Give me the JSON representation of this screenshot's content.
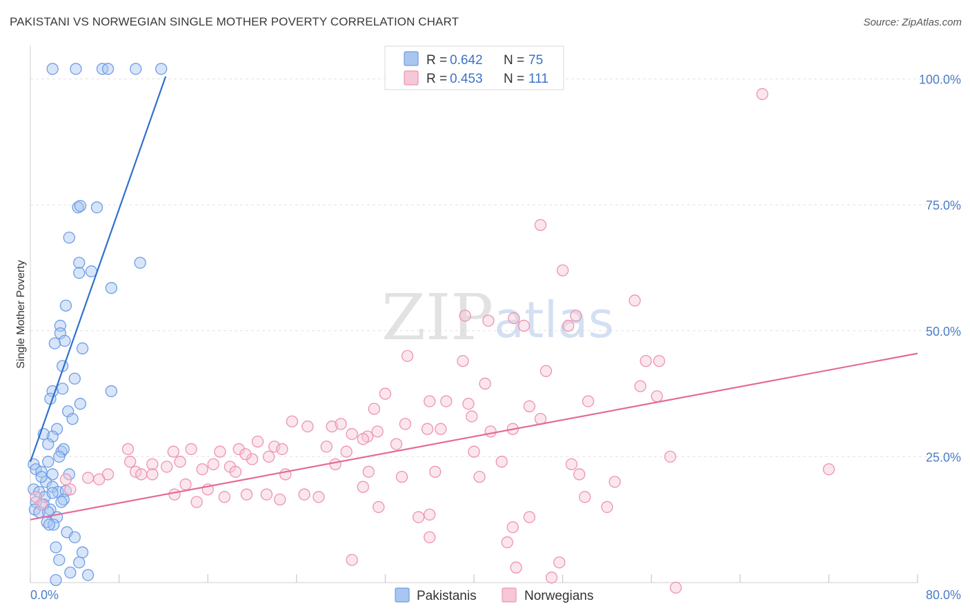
{
  "title": "PAKISTANI VS NORWEGIAN SINGLE MOTHER POVERTY CORRELATION CHART",
  "source": "Source: ZipAtlas.com",
  "watermark": {
    "zip": "ZIP",
    "atlas": "atlas"
  },
  "colors": {
    "blue": "#6d9de6",
    "blue_fill": "#a9c6f1",
    "blue_line": "#2f6fcf",
    "pink": "#ec93b0",
    "pink_fill": "#f6c7d6",
    "pink_line": "#e46b94",
    "grid": "#e2e2e2",
    "tick_text": "#4a7cc9"
  },
  "legend": {
    "rows": [
      {
        "r_label": "R =",
        "r_value": "0.642",
        "n_label": "N =",
        "n_value": "75"
      },
      {
        "r_label": "R =",
        "r_value": "0.453",
        "n_label": "N =",
        "n_value": "111"
      }
    ]
  },
  "chart_data": {
    "type": "scatter",
    "title": "PAKISTANI VS NORWEGIAN SINGLE MOTHER POVERTY CORRELATION CHART",
    "xlabel": "",
    "ylabel": "Single Mother Poverty",
    "xlim": [
      0,
      80
    ],
    "ylim": [
      0,
      105
    ],
    "x_tick_labels": [
      "0.0%",
      "80.0%"
    ],
    "y_ticks": [
      {
        "value": 25,
        "label": "25.0%"
      },
      {
        "value": 50,
        "label": "50.0%"
      },
      {
        "value": 75,
        "label": "75.0%"
      },
      {
        "value": 100,
        "label": "100.0%"
      }
    ],
    "grid": true,
    "legend_position": "top-center",
    "series": [
      {
        "name": "Pakistanis",
        "trend": {
          "x1": 0.0,
          "y1": 24.0,
          "x2": 12.2,
          "y2": 100.5
        },
        "points": [
          [
            2.0,
            102
          ],
          [
            4.1,
            102
          ],
          [
            6.5,
            102
          ],
          [
            7.0,
            102
          ],
          [
            9.5,
            102
          ],
          [
            11.8,
            102
          ],
          [
            4.3,
            74.5
          ],
          [
            4.5,
            74.8
          ],
          [
            6.0,
            74.5
          ],
          [
            3.5,
            68.5
          ],
          [
            4.4,
            63.5
          ],
          [
            4.4,
            61.5
          ],
          [
            5.5,
            61.8
          ],
          [
            7.3,
            58.5
          ],
          [
            9.9,
            63.5
          ],
          [
            3.2,
            55
          ],
          [
            2.7,
            51
          ],
          [
            2.7,
            49.5
          ],
          [
            3.1,
            48
          ],
          [
            2.2,
            47.5
          ],
          [
            4.7,
            46.5
          ],
          [
            2.9,
            43
          ],
          [
            4.0,
            40.5
          ],
          [
            2.9,
            38.5
          ],
          [
            2.0,
            38
          ],
          [
            1.8,
            36.5
          ],
          [
            4.5,
            35.5
          ],
          [
            7.3,
            38
          ],
          [
            3.4,
            34
          ],
          [
            3.8,
            32.5
          ],
          [
            2.4,
            30.5
          ],
          [
            2.0,
            29
          ],
          [
            1.2,
            29.5
          ],
          [
            1.6,
            27.5
          ],
          [
            2.8,
            26
          ],
          [
            3.0,
            26.5
          ],
          [
            2.6,
            25
          ],
          [
            1.6,
            24
          ],
          [
            0.3,
            23.5
          ],
          [
            0.5,
            22.5
          ],
          [
            1.0,
            22
          ],
          [
            2.0,
            21.5
          ],
          [
            3.5,
            21.5
          ],
          [
            1.4,
            20
          ],
          [
            2.0,
            19
          ],
          [
            2.5,
            18
          ],
          [
            3.2,
            18.2
          ],
          [
            3.0,
            16.5
          ],
          [
            0.3,
            18.5
          ],
          [
            0.8,
            18
          ],
          [
            1.3,
            17
          ],
          [
            0.5,
            16
          ],
          [
            1.2,
            15.5
          ],
          [
            1.8,
            14.5
          ],
          [
            2.4,
            13
          ],
          [
            0.4,
            14.5
          ],
          [
            0.8,
            14
          ],
          [
            1.5,
            12
          ],
          [
            2.1,
            11.5
          ],
          [
            1.6,
            14
          ],
          [
            2.8,
            16
          ],
          [
            2.0,
            17.8
          ],
          [
            1.0,
            21
          ],
          [
            1.7,
            11.5
          ],
          [
            3.3,
            10
          ],
          [
            2.6,
            4.5
          ],
          [
            4.0,
            9
          ],
          [
            2.3,
            7
          ],
          [
            4.7,
            6
          ],
          [
            4.4,
            4
          ],
          [
            3.6,
            2
          ],
          [
            5.2,
            1.5
          ],
          [
            2.3,
            0.5
          ]
        ]
      },
      {
        "name": "Norwegians",
        "trend": {
          "x1": 0.0,
          "y1": 12.5,
          "x2": 80.0,
          "y2": 45.5
        },
        "points": [
          [
            66.0,
            97
          ],
          [
            46.0,
            71
          ],
          [
            48.0,
            62
          ],
          [
            54.5,
            56
          ],
          [
            39.2,
            53
          ],
          [
            41.3,
            52
          ],
          [
            43.6,
            52.5
          ],
          [
            44.5,
            51
          ],
          [
            48.5,
            51
          ],
          [
            49.2,
            53
          ],
          [
            34.0,
            45
          ],
          [
            39.0,
            44
          ],
          [
            55.5,
            44
          ],
          [
            56.7,
            44
          ],
          [
            46.5,
            42
          ],
          [
            41.0,
            39.5
          ],
          [
            55.0,
            39
          ],
          [
            32.0,
            37.5
          ],
          [
            36.0,
            36
          ],
          [
            37.5,
            36
          ],
          [
            39.5,
            35.5
          ],
          [
            50.3,
            36
          ],
          [
            31.0,
            34.5
          ],
          [
            39.8,
            33
          ],
          [
            45.0,
            35
          ],
          [
            23.6,
            32
          ],
          [
            25.0,
            31
          ],
          [
            27.2,
            31
          ],
          [
            28.0,
            31.5
          ],
          [
            29.0,
            29.5
          ],
          [
            35.8,
            30.5
          ],
          [
            33.8,
            31.5
          ],
          [
            30.4,
            29
          ],
          [
            31.3,
            30
          ],
          [
            37.0,
            30.5
          ],
          [
            41.5,
            30
          ],
          [
            43.5,
            30.5
          ],
          [
            46.0,
            32.5
          ],
          [
            56.5,
            37
          ],
          [
            20.5,
            28
          ],
          [
            22.0,
            27
          ],
          [
            22.7,
            26.5
          ],
          [
            30.0,
            28.5
          ],
          [
            18.8,
            26.5
          ],
          [
            20.0,
            24.5
          ],
          [
            8.8,
            26.5
          ],
          [
            14.5,
            26.5
          ],
          [
            17.1,
            26
          ],
          [
            19.4,
            25.5
          ],
          [
            21.5,
            25
          ],
          [
            26.7,
            27
          ],
          [
            28.5,
            26
          ],
          [
            33.0,
            27.5
          ],
          [
            40.0,
            26
          ],
          [
            42.5,
            24
          ],
          [
            48.8,
            23.5
          ],
          [
            16.5,
            23.5
          ],
          [
            18.0,
            23
          ],
          [
            9.0,
            24
          ],
          [
            9.5,
            22
          ],
          [
            11.0,
            23.5
          ],
          [
            12.3,
            23
          ],
          [
            12.9,
            26
          ],
          [
            13.5,
            24
          ],
          [
            15.5,
            22.5
          ],
          [
            18.5,
            22
          ],
          [
            23.0,
            21.5
          ],
          [
            27.5,
            23.5
          ],
          [
            30.5,
            22
          ],
          [
            33.5,
            21
          ],
          [
            36.5,
            22
          ],
          [
            40.5,
            21
          ],
          [
            49.5,
            21.5
          ],
          [
            52.7,
            20
          ],
          [
            57.7,
            25
          ],
          [
            72.0,
            22.5
          ],
          [
            7.0,
            21.5
          ],
          [
            10.0,
            21.5
          ],
          [
            11.0,
            21.5
          ],
          [
            5.2,
            20.8
          ],
          [
            6.2,
            20.5
          ],
          [
            3.2,
            20.5
          ],
          [
            3.6,
            18.5
          ],
          [
            0.5,
            17
          ],
          [
            1.0,
            15.5
          ],
          [
            14.0,
            19.5
          ],
          [
            16.0,
            18.5
          ],
          [
            13.0,
            17.5
          ],
          [
            24.7,
            17.5
          ],
          [
            26.0,
            17
          ],
          [
            15.0,
            16
          ],
          [
            17.5,
            17
          ],
          [
            19.5,
            17.5
          ],
          [
            21.3,
            17.5
          ],
          [
            22.5,
            16.5
          ],
          [
            30.0,
            19
          ],
          [
            31.4,
            15
          ],
          [
            35.0,
            13
          ],
          [
            36.0,
            13.5
          ],
          [
            45.0,
            13
          ],
          [
            50.0,
            17
          ],
          [
            52.0,
            15
          ],
          [
            43.5,
            11
          ],
          [
            36.0,
            9
          ],
          [
            43.0,
            8
          ],
          [
            29.0,
            4.5
          ],
          [
            43.8,
            3
          ],
          [
            47.0,
            1
          ],
          [
            47.7,
            4
          ],
          [
            58.2,
            -1
          ]
        ]
      }
    ]
  },
  "bottom_legend": {
    "items": [
      {
        "label": "Pakistanis"
      },
      {
        "label": "Norwegians"
      }
    ]
  }
}
